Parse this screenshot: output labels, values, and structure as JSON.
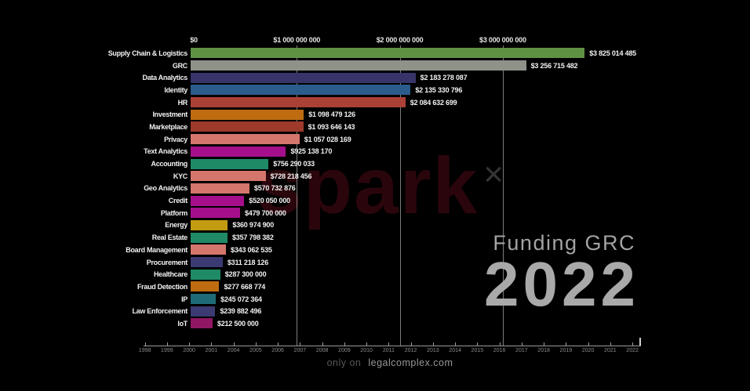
{
  "chart_data": {
    "type": "bar",
    "orientation": "horizontal",
    "title": "Funding GRC",
    "current_year": "2022",
    "x_axis": {
      "tick_labels": [
        "$0",
        "$1 000 000 000",
        "$2 000 000 000",
        "$3 000 000 000"
      ],
      "tick_values": [
        0,
        1000000000,
        2000000000,
        3000000000
      ],
      "grid": true,
      "max_value": 3825014485
    },
    "categories": [
      "Supply Chain & Logistics",
      "GRC",
      "Data Analytics",
      "Identity",
      "HR",
      "Investment",
      "Marketplace",
      "Privacy",
      "Text Analytics",
      "Accounting",
      "KYC",
      "Geo Analytics",
      "Credit",
      "Platform",
      "Energy",
      "Real Estate",
      "Board Management",
      "Procurement",
      "Healthcare",
      "Fraud Detection",
      "IP",
      "Law Enforcement",
      "IoT"
    ],
    "values": [
      3825014485,
      3256715482,
      2183278087,
      2135330796,
      2084632699,
      1098479126,
      1093646143,
      1057028169,
      925138170,
      756290033,
      728218456,
      570732876,
      520050000,
      479700000,
      360974900,
      357798382,
      343062535,
      311218126,
      287300000,
      277668774,
      245072364,
      239882496,
      212500000
    ],
    "value_labels": [
      "$3 825 014 485",
      "$3 256 715 482",
      "$2 183 278 087",
      "$2 135 330 796",
      "$2 084 632 699",
      "$1 098 479 126",
      "$1 093 646 143",
      "$1 057 028 169",
      "$925 138 170",
      "$756 290 033",
      "$728 218 456",
      "$570 732 876",
      "$520 050 000",
      "$479 700 000",
      "$360 974 900",
      "$357 798 382",
      "$343 062 535",
      "$311 218 126",
      "$287 300 000",
      "$277 668 774",
      "$245 072 364",
      "$239 882 496",
      "$212 500 000"
    ],
    "bar_colors": [
      "#5f9243",
      "#8f9288",
      "#37346a",
      "#2b5d8c",
      "#ab4136",
      "#bf6c10",
      "#9e3a2c",
      "#d4766c",
      "#a50f8c",
      "#1f8a66",
      "#d4766c",
      "#d4766c",
      "#a50f8c",
      "#a50f8c",
      "#c29b10",
      "#1f8a66",
      "#d4766c",
      "#3b3a72",
      "#1f8a66",
      "#bf6c10",
      "#1d6b77",
      "#3b3a72",
      "#911664"
    ],
    "timeline_years": [
      "1998",
      "1999",
      "2000",
      "2001",
      "2004",
      "2005",
      "2006",
      "2007",
      "2008",
      "2009",
      "2010",
      "2011",
      "2012",
      "2013",
      "2014",
      "2015",
      "2016",
      "2017",
      "2018",
      "2019",
      "2020",
      "2021",
      "2022"
    ]
  },
  "title": {
    "line1": "Funding GRC",
    "line2": "2022"
  },
  "watermark": {
    "text": "spark",
    "sup": "×"
  },
  "footer": {
    "muted": "only on",
    "brand": "legalcomplex.com"
  },
  "colors": {
    "background": "#000000",
    "axis_text": "#e6e6e6",
    "gridline": "rgba(225,225,225,0.55)",
    "title_text": "#a3a3a3",
    "timeline_text": "#8d8d8d"
  }
}
